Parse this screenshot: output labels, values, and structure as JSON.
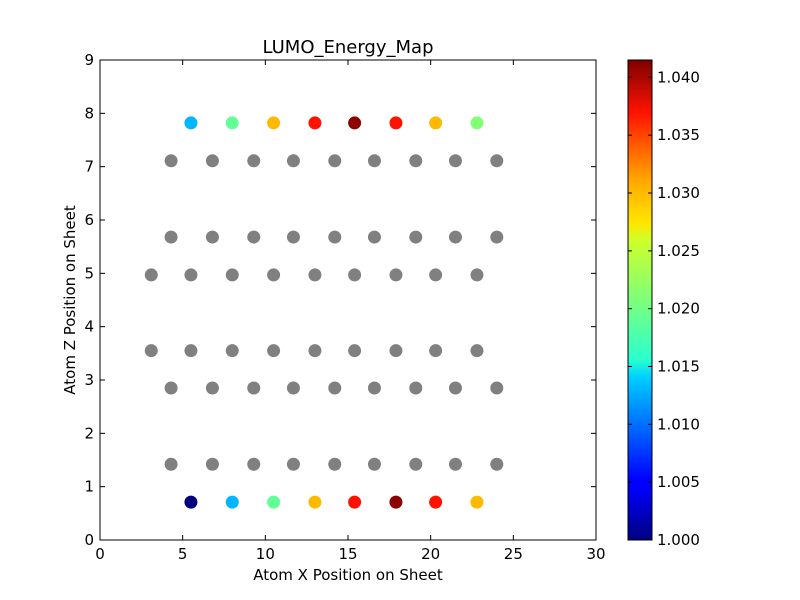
{
  "chart_data": {
    "type": "scatter",
    "title": "LUMO_Energy_Map",
    "xlabel": "Atom X Position on Sheet",
    "ylabel": "Atom Z Position on Sheet",
    "xlim": [
      0,
      30
    ],
    "ylim": [
      0,
      9
    ],
    "xticks": [
      0,
      5,
      10,
      15,
      20,
      25,
      30
    ],
    "yticks": [
      0,
      1,
      2,
      3,
      4,
      5,
      6,
      7,
      8,
      9
    ],
    "grid": false,
    "colormap": "jet",
    "colorbar": {
      "range": [
        1.0,
        1.0415
      ],
      "ticks": [
        "1.000",
        "1.005",
        "1.010",
        "1.015",
        "1.020",
        "1.025",
        "1.030",
        "1.035",
        "1.040"
      ]
    },
    "neutral_color": "#808080",
    "colored_points": [
      {
        "x": 5.5,
        "y": 0.71,
        "v": 1.0
      },
      {
        "x": 8.0,
        "y": 0.71,
        "v": 1.013
      },
      {
        "x": 10.5,
        "y": 0.71,
        "v": 1.019
      },
      {
        "x": 13.0,
        "y": 0.71,
        "v": 1.03
      },
      {
        "x": 15.4,
        "y": 0.71,
        "v": 1.037
      },
      {
        "x": 17.9,
        "y": 0.71,
        "v": 1.041
      },
      {
        "x": 20.3,
        "y": 0.71,
        "v": 1.037
      },
      {
        "x": 22.8,
        "y": 0.71,
        "v": 1.03
      },
      {
        "x": 5.5,
        "y": 7.82,
        "v": 1.013
      },
      {
        "x": 8.0,
        "y": 7.82,
        "v": 1.019
      },
      {
        "x": 10.5,
        "y": 7.82,
        "v": 1.03
      },
      {
        "x": 13.0,
        "y": 7.82,
        "v": 1.037
      },
      {
        "x": 15.4,
        "y": 7.82,
        "v": 1.041
      },
      {
        "x": 17.9,
        "y": 7.82,
        "v": 1.037
      },
      {
        "x": 20.3,
        "y": 7.82,
        "v": 1.03
      },
      {
        "x": 22.8,
        "y": 7.82,
        "v": 1.021
      }
    ],
    "gray_points": [
      {
        "x": 4.3,
        "y": 1.42
      },
      {
        "x": 6.8,
        "y": 1.42
      },
      {
        "x": 9.3,
        "y": 1.42
      },
      {
        "x": 11.7,
        "y": 1.42
      },
      {
        "x": 14.2,
        "y": 1.42
      },
      {
        "x": 16.6,
        "y": 1.42
      },
      {
        "x": 19.1,
        "y": 1.42
      },
      {
        "x": 21.5,
        "y": 1.42
      },
      {
        "x": 24.0,
        "y": 1.42
      },
      {
        "x": 4.3,
        "y": 2.85
      },
      {
        "x": 6.8,
        "y": 2.85
      },
      {
        "x": 9.3,
        "y": 2.85
      },
      {
        "x": 11.7,
        "y": 2.85
      },
      {
        "x": 14.2,
        "y": 2.85
      },
      {
        "x": 16.6,
        "y": 2.85
      },
      {
        "x": 19.1,
        "y": 2.85
      },
      {
        "x": 21.5,
        "y": 2.85
      },
      {
        "x": 24.0,
        "y": 2.85
      },
      {
        "x": 3.1,
        "y": 3.55
      },
      {
        "x": 5.5,
        "y": 3.55
      },
      {
        "x": 8.0,
        "y": 3.55
      },
      {
        "x": 10.5,
        "y": 3.55
      },
      {
        "x": 13.0,
        "y": 3.55
      },
      {
        "x": 15.4,
        "y": 3.55
      },
      {
        "x": 17.9,
        "y": 3.55
      },
      {
        "x": 20.3,
        "y": 3.55
      },
      {
        "x": 22.8,
        "y": 3.55
      },
      {
        "x": 3.1,
        "y": 4.97
      },
      {
        "x": 5.5,
        "y": 4.97
      },
      {
        "x": 8.0,
        "y": 4.97
      },
      {
        "x": 10.5,
        "y": 4.97
      },
      {
        "x": 13.0,
        "y": 4.97
      },
      {
        "x": 15.4,
        "y": 4.97
      },
      {
        "x": 17.9,
        "y": 4.97
      },
      {
        "x": 20.3,
        "y": 4.97
      },
      {
        "x": 22.8,
        "y": 4.97
      },
      {
        "x": 4.3,
        "y": 5.68
      },
      {
        "x": 6.8,
        "y": 5.68
      },
      {
        "x": 9.3,
        "y": 5.68
      },
      {
        "x": 11.7,
        "y": 5.68
      },
      {
        "x": 14.2,
        "y": 5.68
      },
      {
        "x": 16.6,
        "y": 5.68
      },
      {
        "x": 19.1,
        "y": 5.68
      },
      {
        "x": 21.5,
        "y": 5.68
      },
      {
        "x": 24.0,
        "y": 5.68
      },
      {
        "x": 4.3,
        "y": 7.11
      },
      {
        "x": 6.8,
        "y": 7.11
      },
      {
        "x": 9.3,
        "y": 7.11
      },
      {
        "x": 11.7,
        "y": 7.11
      },
      {
        "x": 14.2,
        "y": 7.11
      },
      {
        "x": 16.6,
        "y": 7.11
      },
      {
        "x": 19.1,
        "y": 7.11
      },
      {
        "x": 21.5,
        "y": 7.11
      },
      {
        "x": 24.0,
        "y": 7.11
      }
    ]
  }
}
